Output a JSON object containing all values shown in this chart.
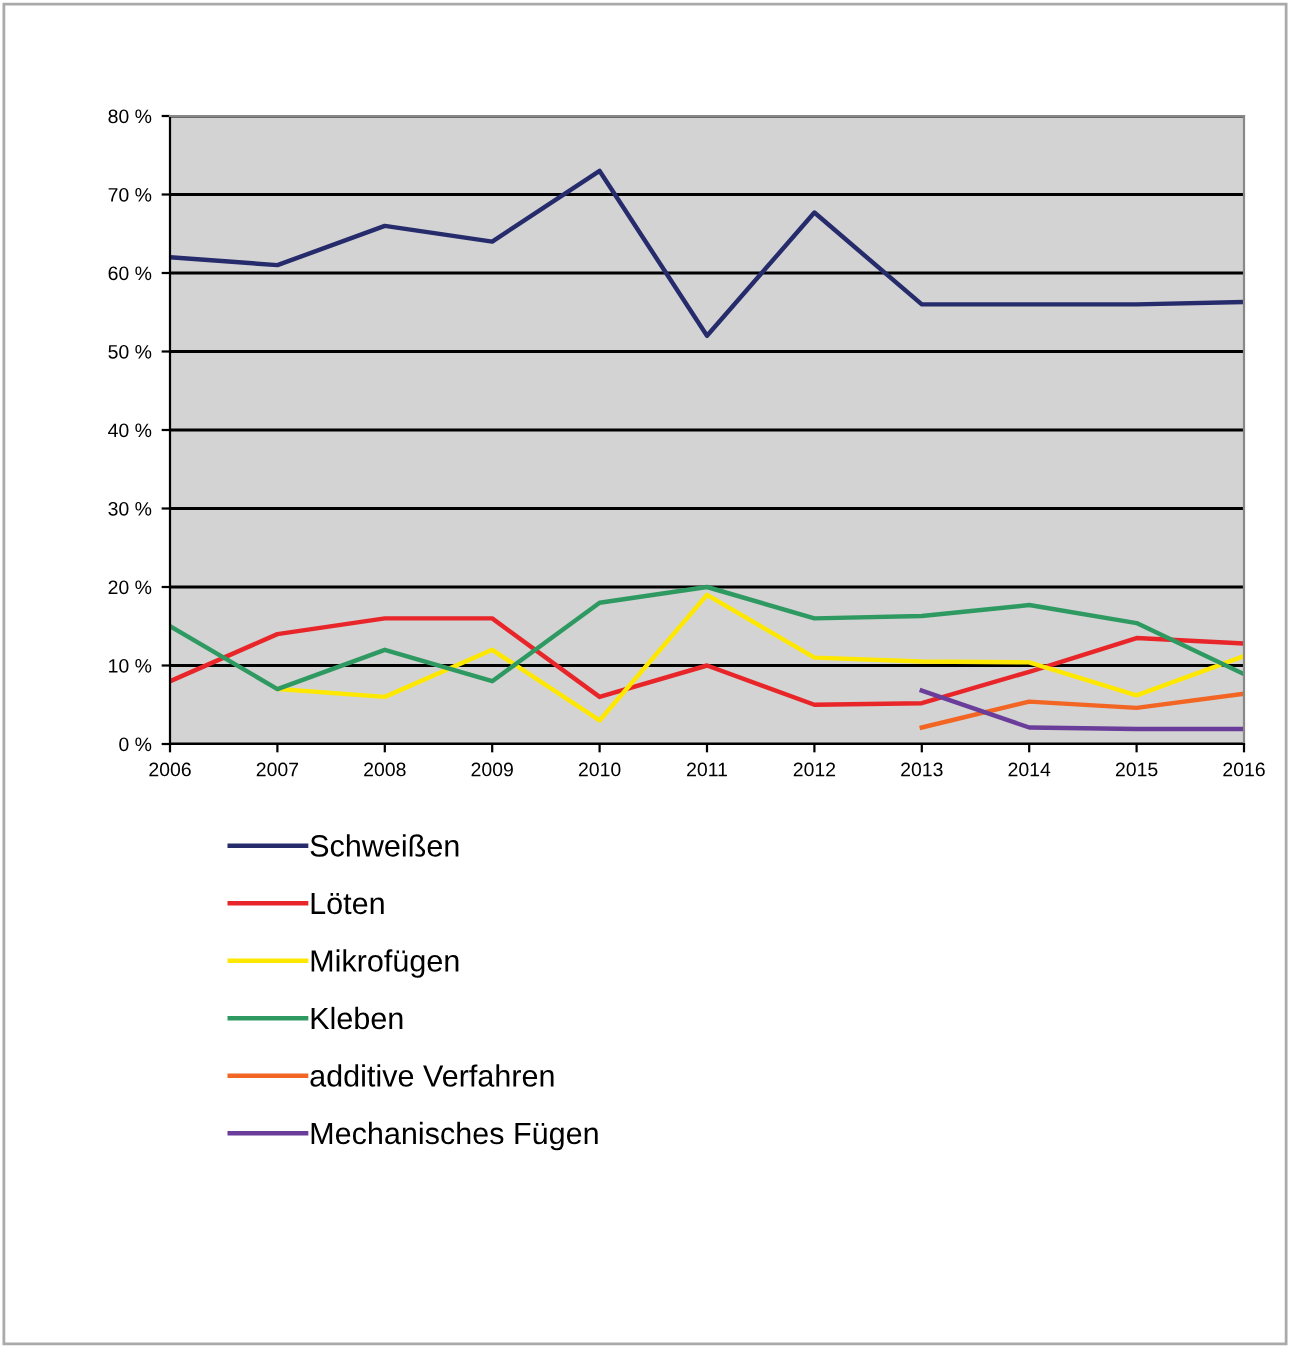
{
  "chart_data": {
    "type": "line",
    "x": [
      2006,
      2007,
      2008,
      2009,
      2010,
      2011,
      2012,
      2013,
      2014,
      2015,
      2016
    ],
    "series": [
      {
        "name": "Schweißen",
        "color": "#262b6b",
        "values": [
          62,
          61,
          66,
          64,
          73,
          52,
          67.7,
          56,
          56,
          56,
          56.3
        ]
      },
      {
        "name": "Löten",
        "color": "#e8262a",
        "values": [
          8,
          14,
          16,
          16,
          6,
          10,
          5,
          5.2,
          9.2,
          13.5,
          12.8
        ]
      },
      {
        "name": "Mikrofügen",
        "color": "#ffe800",
        "values": [
          null,
          7,
          6,
          12,
          3,
          19,
          11,
          10.5,
          10.4,
          6.2,
          11.2
        ]
      },
      {
        "name": "Kleben",
        "color": "#2e9a62",
        "values": [
          15,
          7,
          12,
          8,
          18,
          20,
          16,
          16.3,
          17.7,
          15.4,
          8.9
        ]
      },
      {
        "name": "additive Verfahren",
        "color": "#f26522",
        "values": [
          null,
          null,
          null,
          null,
          null,
          null,
          null,
          2.1,
          5.4,
          4.6,
          6.4
        ]
      },
      {
        "name": "Mechanisches Fügen",
        "color": "#6a3d9a",
        "values": [
          null,
          null,
          null,
          null,
          null,
          null,
          null,
          6.8,
          2.1,
          1.9,
          1.9
        ]
      }
    ],
    "xlim": [
      2006,
      2016
    ],
    "xticks": [
      2006,
      2007,
      2008,
      2009,
      2010,
      2011,
      2012,
      2013,
      2014,
      2015,
      2016
    ],
    "ylim": [
      0,
      80
    ],
    "yticks": [
      {
        "value": 0,
        "label": "0 %"
      },
      {
        "value": 10,
        "label": "10 %"
      },
      {
        "value": 20,
        "label": "20 %"
      },
      {
        "value": 30,
        "label": "30 %"
      },
      {
        "value": 40,
        "label": "40 %"
      },
      {
        "value": 50,
        "label": "50 %"
      },
      {
        "value": 60,
        "label": "60 %"
      },
      {
        "value": 70,
        "label": "70 %"
      },
      {
        "value": 80,
        "label": "80 %"
      }
    ],
    "grid": "y",
    "legend": "bottom",
    "marker": "none",
    "line_style": "solid"
  }
}
